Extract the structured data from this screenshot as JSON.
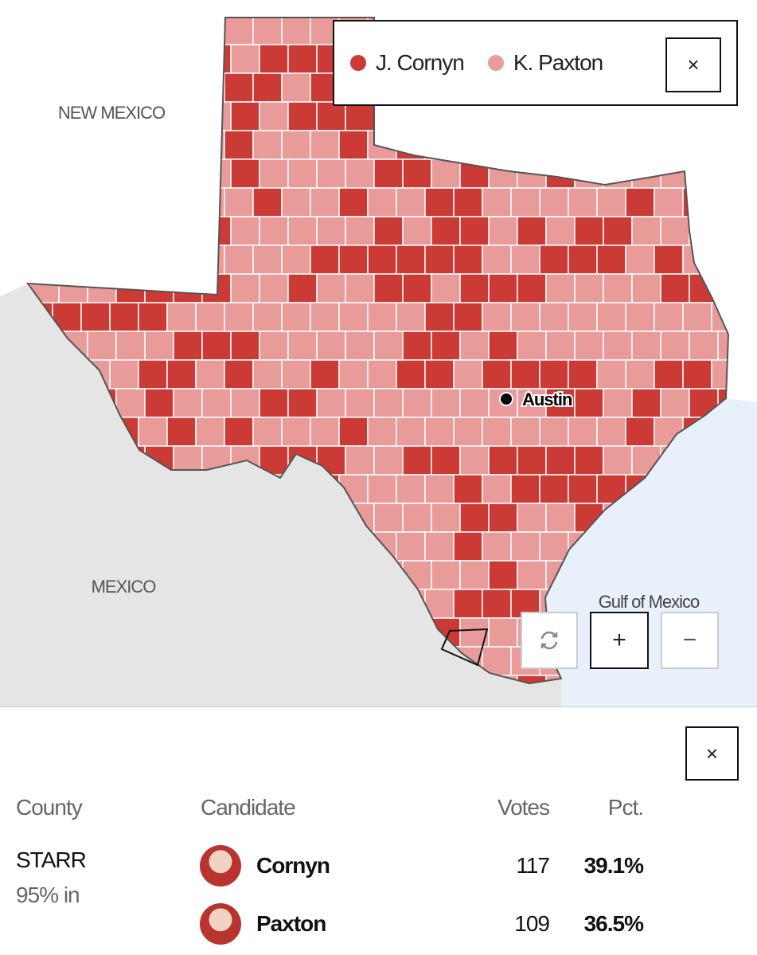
{
  "map": {
    "labels": {
      "new_mexico": "NEW MEXICO",
      "mexico": "MEXICO",
      "gulf": "Gulf of Mexico",
      "city": "Austin"
    },
    "legend": [
      {
        "name": "J. Cornyn",
        "color": "#cc3a36"
      },
      {
        "name": "K. Paxton",
        "color": "#e99b9a"
      }
    ],
    "buttons": {
      "close": "×",
      "zoom_in": "+",
      "zoom_out": "−"
    }
  },
  "results": {
    "close": "×",
    "headers": [
      "County",
      "Candidate",
      "Votes",
      "Pct."
    ],
    "county": "STARR",
    "reporting": "95% in",
    "rows": [
      {
        "candidate": "Cornyn",
        "votes": 117,
        "pct": "39.1%"
      },
      {
        "candidate": "Paxton",
        "votes": 109,
        "pct": "36.5%"
      }
    ]
  }
}
